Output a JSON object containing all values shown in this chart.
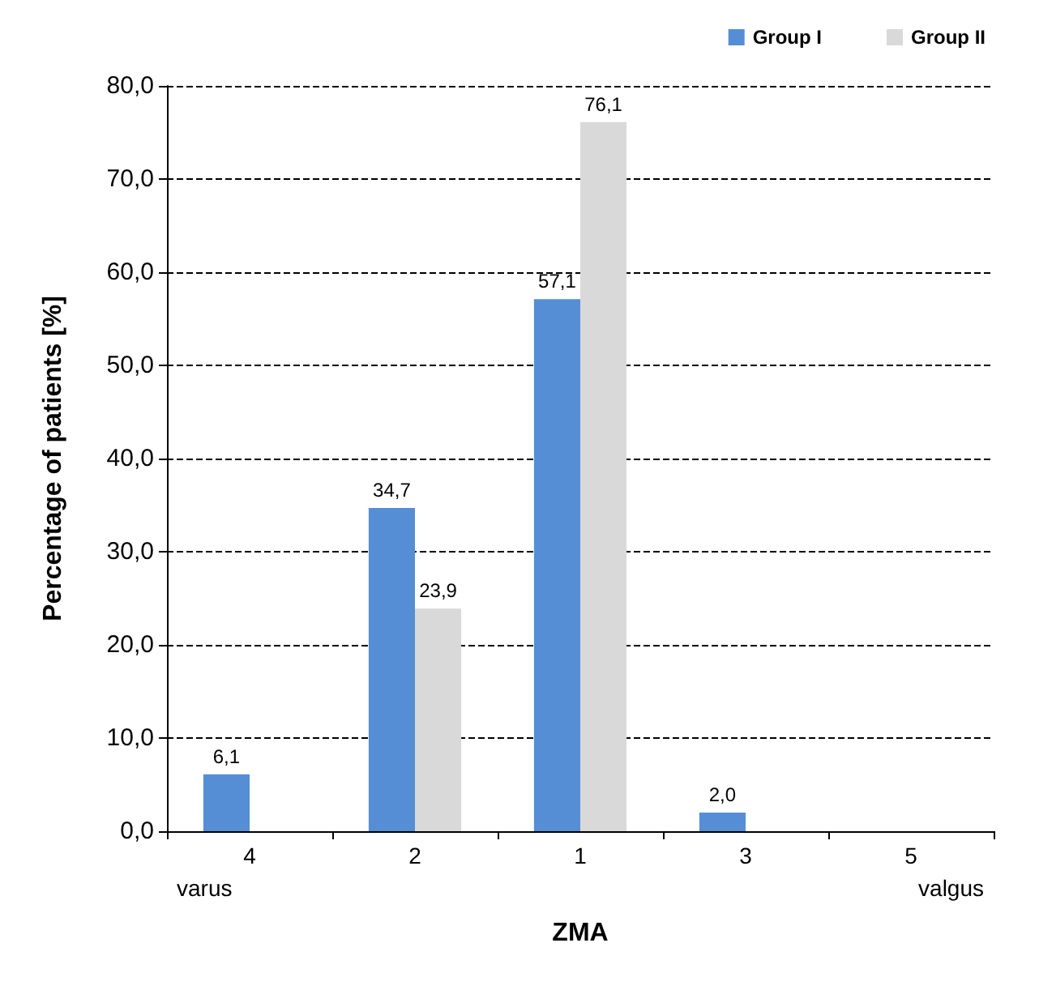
{
  "chart_data": {
    "type": "bar",
    "xlabel": "ZMA",
    "ylabel": "Percentage of patients [%]",
    "categories": [
      "4",
      "2",
      "1",
      "3",
      "5"
    ],
    "series": [
      {
        "name": "Group I",
        "color": "#558ed5",
        "values": [
          6.1,
          34.7,
          57.1,
          2.0,
          null
        ],
        "value_labels": [
          "6,1",
          "34,7",
          "57,1",
          "2,0",
          null
        ]
      },
      {
        "name": "Group II",
        "color": "#d9d9d9",
        "values": [
          null,
          23.9,
          76.1,
          null,
          null
        ],
        "value_labels": [
          null,
          "23,9",
          "76,1",
          null,
          null
        ]
      }
    ],
    "ylim": [
      0,
      80
    ],
    "yticks": [
      {
        "value": 0,
        "label": "0,0"
      },
      {
        "value": 10,
        "label": "10,0"
      },
      {
        "value": 20,
        "label": "20,0"
      },
      {
        "value": 30,
        "label": "30,0"
      },
      {
        "value": 40,
        "label": "40,0"
      },
      {
        "value": 50,
        "label": "50,0"
      },
      {
        "value": 60,
        "label": "60,0"
      },
      {
        "value": 70,
        "label": "70,0"
      },
      {
        "value": 80,
        "label": "80,0"
      }
    ],
    "grid": "y",
    "legend": "top right",
    "annotations": [
      "varus",
      "valgus"
    ]
  }
}
